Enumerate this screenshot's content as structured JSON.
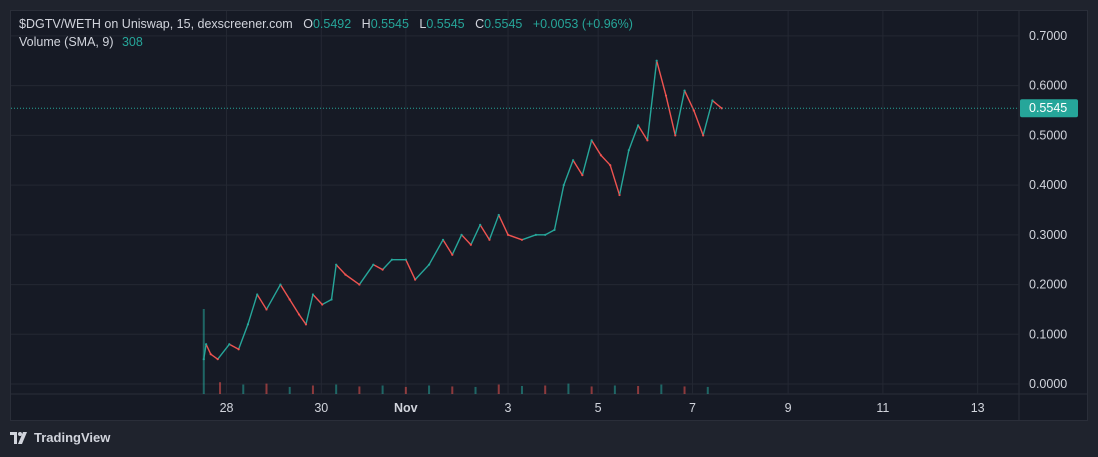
{
  "legend": {
    "symbol": "$DGTV/WETH on Uniswap, 15, dexscreener.com",
    "open_label": "O",
    "open": "0.5492",
    "high_label": "H",
    "high": "0.5545",
    "low_label": "L",
    "low": "0.5545",
    "close_label": "C",
    "close": "0.5545",
    "change": "+0.0053 (+0.96%)",
    "volume_label": "Volume (SMA, 9)",
    "volume": "308"
  },
  "branding": {
    "name": "TradingView"
  },
  "colors": {
    "up": "#26a69a",
    "down": "#ef5350",
    "grid": "#242833",
    "text": "#d1d4dc",
    "price_tag": "#26a69a",
    "background": "#161a25"
  },
  "chart_data": {
    "type": "line",
    "title": "$DGTV/WETH on Uniswap, 15, dexscreener.com",
    "current_price": 0.5545,
    "current_price_label": "0.5545",
    "ylim": [
      -0.02,
      0.75
    ],
    "y_ticks": [
      "0.7000",
      "0.6000",
      "0.5000",
      "0.4000",
      "0.3000",
      "0.2000",
      "0.1000",
      "0.0000"
    ],
    "y_tick_values": [
      0.7,
      0.6,
      0.5,
      0.4,
      0.3,
      0.2,
      0.1,
      0.0
    ],
    "x_ticks": [
      "28",
      "30",
      "Nov",
      "3",
      "5",
      "7",
      "9",
      "11",
      "13"
    ],
    "x_tick_days": [
      0.14,
      2.18,
      4.0,
      6.2,
      8.14,
      10.17,
      12.23,
      14.27,
      16.31
    ],
    "xlim_days": [
      -4.5,
      17.2
    ],
    "series": [
      {
        "name": "price",
        "x_days": [
          -0.35,
          -0.3,
          -0.2,
          -0.05,
          0.2,
          0.4,
          0.6,
          0.8,
          1.0,
          1.3,
          1.5,
          1.7,
          1.85,
          2.0,
          2.2,
          2.4,
          2.5,
          2.7,
          3.0,
          3.3,
          3.5,
          3.7,
          4.0,
          4.2,
          4.5,
          4.8,
          5.0,
          5.2,
          5.4,
          5.6,
          5.8,
          6.0,
          6.2,
          6.5,
          6.8,
          7.0,
          7.2,
          7.4,
          7.6,
          7.8,
          8.0,
          8.2,
          8.4,
          8.6,
          8.8,
          9.0,
          9.2,
          9.4,
          9.6,
          9.8,
          10.0,
          10.2,
          10.4,
          10.6,
          10.8
        ],
        "values": [
          0.05,
          0.08,
          0.06,
          0.05,
          0.08,
          0.07,
          0.12,
          0.18,
          0.15,
          0.2,
          0.17,
          0.14,
          0.12,
          0.18,
          0.16,
          0.17,
          0.24,
          0.22,
          0.2,
          0.24,
          0.23,
          0.25,
          0.25,
          0.21,
          0.24,
          0.29,
          0.26,
          0.3,
          0.28,
          0.32,
          0.29,
          0.34,
          0.3,
          0.29,
          0.3,
          0.3,
          0.31,
          0.4,
          0.45,
          0.42,
          0.49,
          0.46,
          0.44,
          0.38,
          0.47,
          0.52,
          0.49,
          0.65,
          0.58,
          0.5,
          0.59,
          0.55,
          0.5,
          0.57,
          0.5545
        ]
      }
    ],
    "volume": {
      "name": "Volume (SMA, 9)",
      "x_days": [
        -0.35,
        0.0,
        0.5,
        1.0,
        1.5,
        2.0,
        2.5,
        3.0,
        3.5,
        4.0,
        4.5,
        5.0,
        5.5,
        6.0,
        6.5,
        7.0,
        7.5,
        8.0,
        8.5,
        9.0,
        9.5,
        10.0,
        10.5
      ],
      "values": [
        18.0,
        2.5,
        2.0,
        2.2,
        1.5,
        1.8,
        2.0,
        1.6,
        1.8,
        1.5,
        1.8,
        1.6,
        1.5,
        2.0,
        1.7,
        1.8,
        2.2,
        1.6,
        1.8,
        1.7,
        2.0,
        1.6,
        1.5
      ]
    }
  }
}
